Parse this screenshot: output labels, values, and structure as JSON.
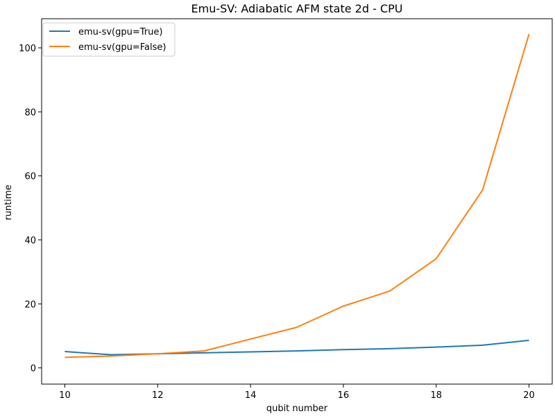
{
  "chart_data": {
    "type": "line",
    "title": "Emu-SV: Adiabatic AFM state 2d - CPU",
    "xlabel": "qubit number",
    "ylabel": "runtime",
    "x": [
      10,
      11,
      12,
      13,
      14,
      15,
      16,
      17,
      18,
      19,
      20
    ],
    "xlim": [
      9.5,
      20.5
    ],
    "ylim": [
      -5.07,
      109.1
    ],
    "xticks": [
      10,
      12,
      14,
      16,
      18,
      20
    ],
    "yticks": [
      0,
      20,
      40,
      60,
      80,
      100
    ],
    "grid": false,
    "legend_position": "top-left",
    "series": [
      {
        "name": "emu-sv(gpu=True)",
        "color": "#1f77b4",
        "values": [
          5.1,
          4.1,
          4.4,
          4.7,
          5.0,
          5.3,
          5.7,
          6.0,
          6.5,
          7.1,
          8.6
        ]
      },
      {
        "name": "emu-sv(gpu=False)",
        "color": "#ff7f0e",
        "values": [
          3.3,
          3.7,
          4.4,
          5.3,
          9.0,
          12.7,
          19.3,
          24.0,
          34.1,
          55.6,
          104.3
        ]
      }
    ]
  }
}
